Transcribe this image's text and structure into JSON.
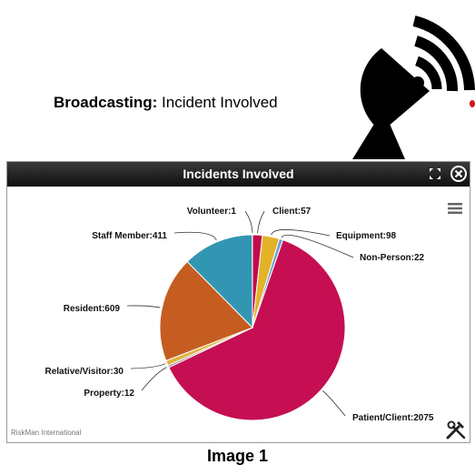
{
  "broadcast": {
    "prefix": "Broadcasting:",
    "text": "Incident Involved"
  },
  "widget": {
    "title": "Incidents Involved",
    "footer": "RiskMan International"
  },
  "caption": "Image 1",
  "chart_data": {
    "type": "pie",
    "title": "",
    "slices": [
      {
        "label": "Client",
        "value": 57,
        "color": "#c30a4c"
      },
      {
        "label": "Equipment",
        "value": 98,
        "color": "#e2b229"
      },
      {
        "label": "Non-Person",
        "value": 22,
        "color": "#6f9fcf"
      },
      {
        "label": "Patient/Client",
        "value": 2075,
        "color": "#c50f52"
      },
      {
        "label": "Property",
        "value": 12,
        "color": "#9f7f9f"
      },
      {
        "label": "Relative/Visitor",
        "value": 30,
        "color": "#e0b443"
      },
      {
        "label": "Resident",
        "value": 609,
        "color": "#c55d21"
      },
      {
        "label": "Staff Member",
        "value": 411,
        "color": "#3296b2"
      },
      {
        "label": "Volunteer",
        "value": 1,
        "color": "#7a2ea0"
      }
    ]
  }
}
